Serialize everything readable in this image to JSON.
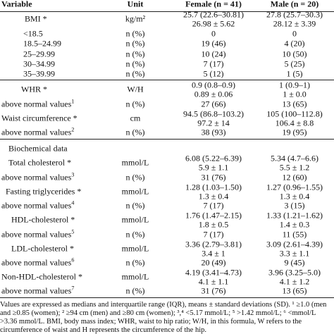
{
  "table": {
    "header": [
      "Variable",
      "Unit",
      "Female (n = 41)",
      "Male (n = 20)"
    ],
    "rows": [
      {
        "variable": "BMI *",
        "unit": "kg/m²",
        "female": [
          "25.7 (22.6–30.81)",
          "26.98 ± 5.62"
        ],
        "male": [
          "27.8 (25.7–30.3)",
          "28.12 ± 3.39"
        ]
      },
      {
        "variable": "<18.5",
        "unit": "n (%)",
        "female": "0",
        "male": "0"
      },
      {
        "variable": "18.5–24.99",
        "unit": "n (%)",
        "female": "19 (46)",
        "male": "4 (20)"
      },
      {
        "variable": "25–29.99",
        "unit": "n (%)",
        "female": "10 (24)",
        "male": "10 (50)"
      },
      {
        "variable": "30–34.99",
        "unit": "n (%)",
        "female": "7 (17)",
        "male": "5 (25)"
      },
      {
        "variable": "35–39.99",
        "unit": "n (%)",
        "female": "5 (12)",
        "male": "1 (5)"
      },
      {
        "variable": "WHR *",
        "unit": "W/H",
        "female": [
          "0.9 (0.8–0.9)",
          "0.89 ± 0.06"
        ],
        "male": [
          "1 (0.9–1)",
          "1 ± 0.0"
        ]
      },
      {
        "variable": "above normal values",
        "note": "1",
        "unit": "n (%)",
        "female": "27 (66)",
        "male": "13 (65)"
      },
      {
        "variable": "Waist circumference *",
        "unit": "cm",
        "female": [
          "94.5 (86.8–103.2)",
          "97.2 ± 14"
        ],
        "male": [
          "105 (100–112.8)",
          "106.4 ± 8.8"
        ]
      },
      {
        "variable": "above normal values",
        "note": "2",
        "unit": "n (%)",
        "female": "38 (93)",
        "male": "19 (95)"
      },
      {
        "variable": "Biochemical data"
      },
      {
        "variable": "Total cholesterol *",
        "unit": "mmol/L",
        "female": [
          "6.08 (5.22–6.39)",
          "5.9 ± 1.1"
        ],
        "male": [
          "5.34 (4.7–6.6)",
          "5.5 ± 1.2"
        ]
      },
      {
        "variable": "above normal values",
        "note": "3",
        "unit": "n (%)",
        "female": "31 (76)",
        "male": "12 (60)"
      },
      {
        "variable": "Fasting triglycerides *",
        "unit": "mmol/L",
        "female": [
          "1.28 (1.03–1.50)",
          "1.3 ± 0.4"
        ],
        "male": [
          "1.27 (0.96–1.55)",
          "1.3 ± 0.4"
        ]
      },
      {
        "variable": "above normal values",
        "note": "4",
        "unit": "n (%)",
        "female": "7 (17)",
        "male": "3 (15)"
      },
      {
        "variable": "HDL-cholesterol *",
        "unit": "mmol/L",
        "female": [
          "1.76 (1.47–2.15)",
          "1.8 ± 0.5"
        ],
        "male": [
          "1.33 (1.21–1.62)",
          "1.4 ± 0.3"
        ]
      },
      {
        "variable": "above normal values",
        "note": "5",
        "unit": "n (%)",
        "female": "7 (17)",
        "male": "11 (55)"
      },
      {
        "variable": "LDL-cholesterol *",
        "unit": "mmol/L",
        "female": [
          "3.36 (2.79–3.81)",
          "3.4 ± 1"
        ],
        "male": [
          "3.09 (2.61–4.39)",
          "3.3 ± 1.1"
        ]
      },
      {
        "variable": "above normal values",
        "note": "6",
        "unit": "n (%)",
        "female": "20 (49)",
        "male": "9 (45)"
      },
      {
        "variable": "Non-HDL-cholesterol *",
        "unit": "mmol/L",
        "female": [
          "4.19 (3.41–4.73)",
          "4.1 ± 1.1"
        ],
        "male": [
          "3.96 (3.25–5.0)",
          "4.1 ± 1.2"
        ]
      },
      {
        "variable": "above normal values",
        "note": "7",
        "unit": "n (%)",
        "female": "31 (76)",
        "male": "13 (65)"
      }
    ],
    "footnote": [
      "Values are expressed as medians and interquartile range (IQR), means ± standard deviations (SD). ¹ ≥1.0 (men",
      "and ≥0.85 (women); ² ≥94 cm (men) and ≥80 cm (women); ³,⁴ <5.17 mmol/L; ⁵ >1.42 mmol/L; ⁶ <mmol/L",
      ">3.36 mmol/L. BMI, body mass index; WHR, waist to hip ratio; W/H, in this formula, W refers to the",
      "circumference of waist and H represents the circumference of the hip."
    ]
  }
}
